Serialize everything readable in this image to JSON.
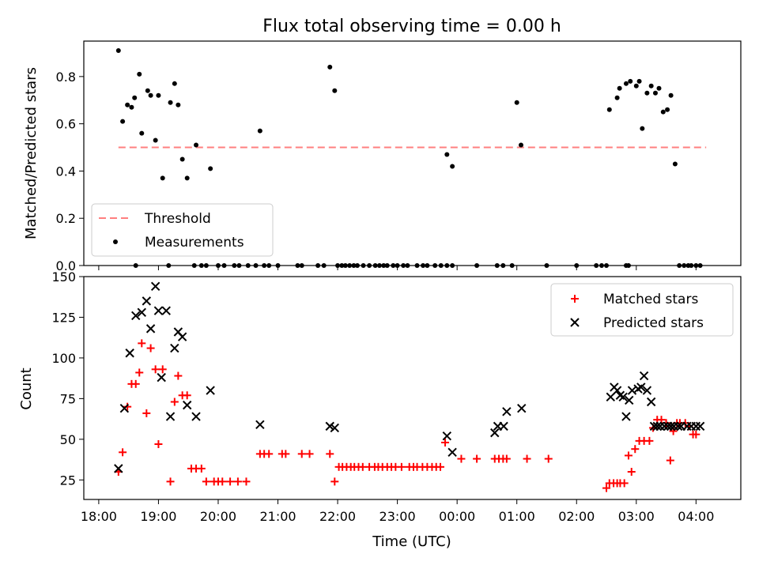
{
  "chart_data": [
    {
      "type": "scatter",
      "title": "Flux total observing time = 0.00 h",
      "xlabel": "",
      "ylabel": "Matched/Predicted stars",
      "ylim": [
        0,
        0.95
      ],
      "xlim": [
        -0.25,
        10.75
      ],
      "x_unit": "hours since 18:00 UTC",
      "y_ticks": [
        "0.0",
        "0.2",
        "0.4",
        "0.6",
        "0.8"
      ],
      "y_tick_values": [
        0,
        0.2,
        0.4,
        0.6,
        0.8
      ],
      "legend_position": "lower-left",
      "series": [
        {
          "name": "Threshold",
          "style": "dashed-line",
          "color": "#ff7f7f",
          "x": [
            0.33,
            10.17
          ],
          "y": [
            0.5,
            0.5
          ]
        },
        {
          "name": "Measurements",
          "style": "dot",
          "color": "#000000",
          "x": [
            0.33,
            0.4,
            0.48,
            0.55,
            0.6,
            0.68,
            0.72,
            0.82,
            0.87,
            0.95,
            1.0,
            1.07,
            1.2,
            1.27,
            1.33,
            1.4,
            1.48,
            1.63,
            1.87,
            2.7,
            3.87,
            3.95,
            5.83,
            5.92,
            7.0,
            7.07,
            8.55,
            8.68,
            8.72,
            8.83,
            8.9,
            9.0,
            9.05,
            9.1,
            9.18,
            9.25,
            9.32,
            9.38,
            9.45,
            9.52,
            9.58,
            9.65,
            9.72,
            9.8,
            9.87,
            9.92,
            10.0,
            10.07,
            0.62,
            1.17,
            1.6,
            1.72,
            1.8,
            2.0,
            2.1,
            2.27,
            2.35,
            2.5,
            2.63,
            2.77,
            2.85,
            3.0,
            3.33,
            3.4,
            3.67,
            3.77,
            4.0,
            4.07,
            4.13,
            4.2,
            4.27,
            4.33,
            4.43,
            4.53,
            4.63,
            4.7,
            4.77,
            4.83,
            4.93,
            5.0,
            5.1,
            5.17,
            5.33,
            5.43,
            5.5,
            5.63,
            5.73,
            5.83,
            5.92,
            6.33,
            6.67,
            6.77,
            6.92,
            7.5,
            8.0,
            8.33,
            8.42,
            8.5,
            8.83,
            8.87
          ],
          "y": [
            0.91,
            0.61,
            0.68,
            0.67,
            0.71,
            0.81,
            0.56,
            0.74,
            0.72,
            0.53,
            0.72,
            0.37,
            0.69,
            0.77,
            0.68,
            0.45,
            0.37,
            0.51,
            0.41,
            0.57,
            0.84,
            0.74,
            0.47,
            0.42,
            0.69,
            0.51,
            0.66,
            0.71,
            0.75,
            0.77,
            0.78,
            0.76,
            0.78,
            0.58,
            0.73,
            0.76,
            0.73,
            0.75,
            0.65,
            0.66,
            0.72,
            0.43,
            0.0,
            0.0,
            0.0,
            0.0,
            0.0,
            0.0,
            0.0,
            0.0,
            0.0,
            0.0,
            0.0,
            0.0,
            0.0,
            0.0,
            0.0,
            0.0,
            0.0,
            0.0,
            0.0,
            0.0,
            0.0,
            0.0,
            0.0,
            0.0,
            0.0,
            0.0,
            0.0,
            0.0,
            0.0,
            0.0,
            0.0,
            0.0,
            0.0,
            0.0,
            0.0,
            0.0,
            0.0,
            0.0,
            0.0,
            0.0,
            0.0,
            0.0,
            0.0,
            0.0,
            0.0,
            0.0,
            0.0,
            0.0,
            0.0,
            0.0,
            0.0,
            0.0,
            0.0,
            0.0,
            0.0,
            0.0,
            0.0,
            0.0
          ]
        }
      ]
    },
    {
      "type": "scatter",
      "title": "",
      "xlabel": "Time (UTC)",
      "ylabel": "Count",
      "ylim": [
        13,
        150
      ],
      "xlim": [
        -0.25,
        10.75
      ],
      "x_unit": "hours since 18:00 UTC",
      "x_ticks": [
        "18:00",
        "19:00",
        "20:00",
        "21:00",
        "22:00",
        "23:00",
        "00:00",
        "01:00",
        "02:00",
        "03:00",
        "04:00"
      ],
      "x_tick_values": [
        0,
        1,
        2,
        3,
        4,
        5,
        6,
        7,
        8,
        9,
        10
      ],
      "y_ticks": [
        "25",
        "50",
        "75",
        "100",
        "125",
        "150"
      ],
      "y_tick_values": [
        25,
        50,
        75,
        100,
        125,
        150
      ],
      "legend_position": "top-right",
      "series": [
        {
          "name": "Matched stars",
          "style": "plus",
          "color": "#ff0000",
          "x": [
            0.33,
            0.4,
            0.48,
            0.55,
            0.62,
            0.68,
            0.72,
            0.8,
            0.87,
            0.95,
            1.0,
            1.07,
            1.2,
            1.27,
            1.33,
            1.4,
            1.48,
            1.55,
            1.63,
            1.72,
            1.8,
            1.93,
            2.0,
            2.07,
            2.2,
            2.33,
            2.47,
            2.7,
            2.77,
            2.85,
            3.07,
            3.13,
            3.4,
            3.53,
            3.87,
            3.95,
            4.02,
            4.08,
            4.15,
            4.22,
            4.28,
            4.35,
            4.42,
            4.53,
            4.62,
            4.68,
            4.75,
            4.83,
            4.9,
            4.97,
            5.07,
            5.2,
            5.27,
            5.33,
            5.42,
            5.5,
            5.58,
            5.65,
            5.72,
            5.8,
            6.07,
            6.33,
            6.63,
            6.7,
            6.77,
            6.83,
            7.17,
            7.53,
            8.5,
            8.55,
            8.62,
            8.68,
            8.73,
            8.8,
            8.87,
            8.92,
            8.98,
            9.05,
            9.13,
            9.22,
            9.28,
            9.35,
            9.42,
            9.5,
            9.57,
            9.62,
            9.68,
            9.73,
            9.82,
            9.88,
            9.95,
            10.0
          ],
          "y": [
            30,
            42,
            70,
            84,
            84,
            91,
            109,
            66,
            106,
            93,
            47,
            93,
            24,
            73,
            89,
            77,
            77,
            32,
            32,
            32,
            24,
            24,
            24,
            24,
            24,
            24,
            24,
            41,
            41,
            41,
            41,
            41,
            41,
            41,
            41,
            24,
            33,
            33,
            33,
            33,
            33,
            33,
            33,
            33,
            33,
            33,
            33,
            33,
            33,
            33,
            33,
            33,
            33,
            33,
            33,
            33,
            33,
            33,
            33,
            48,
            38,
            38,
            38,
            38,
            38,
            38,
            38,
            38,
            20,
            23,
            23,
            23,
            23,
            23,
            40,
            30,
            44,
            49,
            49,
            49,
            57,
            62,
            62,
            60,
            37,
            55,
            60,
            60,
            60,
            58,
            53,
            53
          ],
          "y_extra_note": "",
          "x_extra": [],
          "y_extra": []
        },
        {
          "name": "Predicted stars",
          "style": "x",
          "color": "#000000",
          "x": [
            0.33,
            0.43,
            0.52,
            0.62,
            0.72,
            0.8,
            0.87,
            0.95,
            1.0,
            1.05,
            1.13,
            1.2,
            1.27,
            1.33,
            1.4,
            1.48,
            1.63,
            1.87,
            2.7,
            3.87,
            3.95,
            5.83,
            5.92,
            6.63,
            6.68,
            6.78,
            6.83,
            7.08,
            8.57,
            8.63,
            8.68,
            8.73,
            8.78,
            8.83,
            8.88,
            8.93,
            9.03,
            9.08,
            9.13,
            9.18,
            9.25,
            9.3,
            9.35,
            9.4,
            9.47,
            9.53,
            9.58,
            9.63,
            9.7,
            9.75,
            9.85,
            9.92,
            10.0,
            10.07
          ],
          "y": [
            32,
            69,
            103,
            126,
            128,
            135,
            118,
            144,
            129,
            88,
            129,
            64,
            106,
            116,
            113,
            71,
            64,
            80,
            59,
            58,
            57,
            52,
            42,
            54,
            58,
            58,
            67,
            69,
            76,
            82,
            80,
            77,
            76,
            64,
            74,
            80,
            81,
            82,
            89,
            80,
            73,
            58,
            58,
            58,
            58,
            58,
            58,
            58,
            58,
            58,
            58,
            58,
            58,
            58
          ]
        }
      ]
    }
  ]
}
